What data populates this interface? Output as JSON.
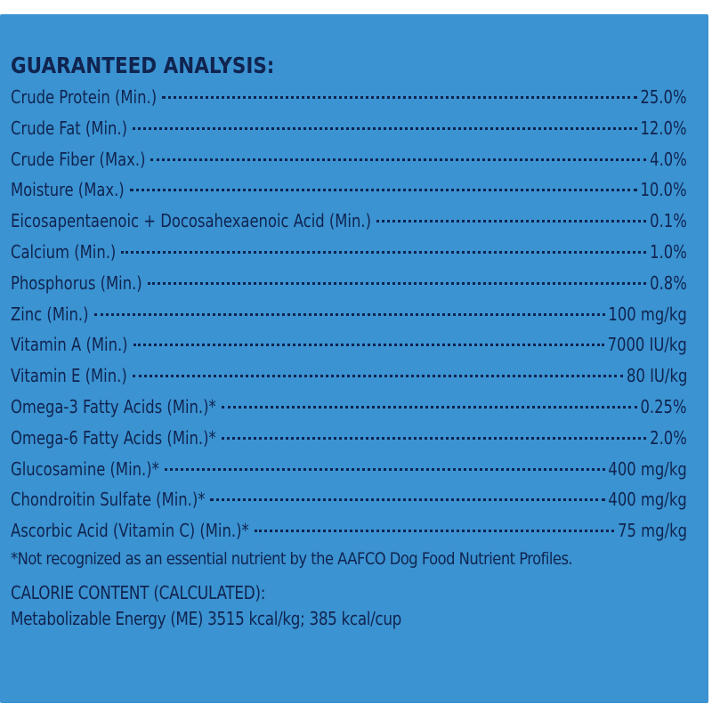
{
  "heading": "GUARANTEED ANALYSIS:",
  "analysis": [
    {
      "label": "Crude Protein (Min.)",
      "value": "25.0%"
    },
    {
      "label": "Crude Fat (Min.)",
      "value": "12.0%"
    },
    {
      "label": "Crude Fiber (Max.)",
      "value": "4.0%"
    },
    {
      "label": "Moisture (Max.)",
      "value": "10.0%"
    },
    {
      "label": "Eicosapentaenoic + Docosahexaenoic Acid (Min.)",
      "value": "0.1%"
    },
    {
      "label": "Calcium (Min.)",
      "value": "1.0%"
    },
    {
      "label": "Phosphorus (Min.)",
      "value": "0.8%"
    },
    {
      "label": "Zinc (Min.)",
      "value": "100 mg/kg"
    },
    {
      "label": "Vitamin A (Min.)",
      "value": "7000 IU/kg"
    },
    {
      "label": "Vitamin E (Min.)",
      "value": "80 IU/kg"
    },
    {
      "label": "Omega-3 Fatty Acids (Min.)*",
      "value": "0.25%"
    },
    {
      "label": "Omega-6 Fatty Acids (Min.)*",
      "value": "2.0%"
    },
    {
      "label": "Glucosamine (Min.)*",
      "value": "400 mg/kg"
    },
    {
      "label": "Chondroitin Sulfate (Min.)*",
      "value": "400 mg/kg"
    },
    {
      "label": "Ascorbic Acid (Vitamin C) (Min.)*",
      "value": "75 mg/kg"
    }
  ],
  "footnote": "*Not recognized as an essential nutrient by the AAFCO Dog Food Nutrient Profiles.",
  "calorie": {
    "heading": "CALORIE CONTENT (CALCULATED):",
    "line": "Metabolizable Energy (ME) 3515 kcal/kg;  385 kcal/cup"
  },
  "colors": {
    "panel_background": "#3b93d2",
    "text": "#10244f"
  }
}
